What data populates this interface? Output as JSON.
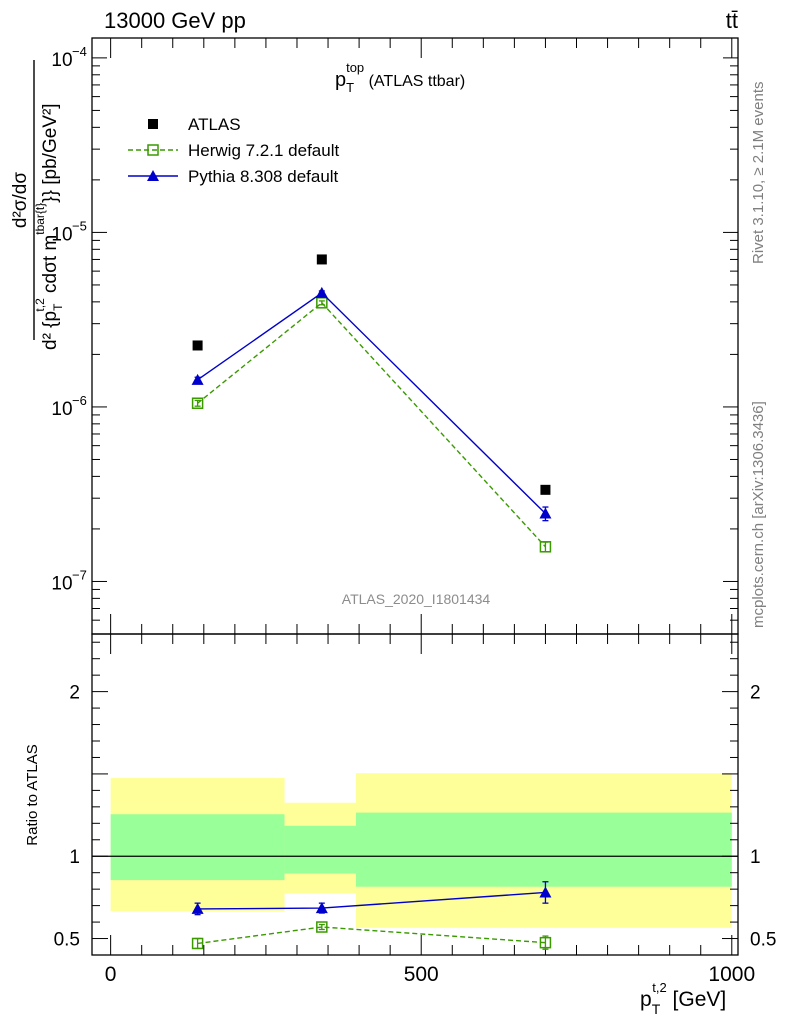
{
  "header": {
    "energy_label": "13000 GeV pp",
    "process_label": "tt̄",
    "side_rivet": "Rivet 3.1.10, ≥ 2.1M events",
    "side_mcplots": "mcplots.cern.ch [arXiv:1306.3436]"
  },
  "chart_data": [
    {
      "type": "line",
      "title_main": "p",
      "title_sub": "T",
      "title_sup": "top",
      "title_rest": " (ATLAS ttbar)",
      "analysis_label": "ATLAS_2020_I1801434",
      "ylabel": "d²σ/d{p_T^{t,2} cdot m^{tbar{t}}} [pb/GeV²]",
      "yscale": "log",
      "ylim": [
        5e-08,
        0.00013
      ],
      "xlim": [
        -30,
        1010
      ],
      "y_ticks": [
        {
          "value": 0.0001,
          "label": "10",
          "exp": "−4"
        },
        {
          "value": 1e-05,
          "label": "10",
          "exp": "−5"
        },
        {
          "value": 1e-06,
          "label": "10",
          "exp": "−6"
        },
        {
          "value": 1e-07,
          "label": "10",
          "exp": "−7"
        }
      ],
      "x": [
        140,
        340,
        700
      ],
      "series": [
        {
          "name": "ATLAS",
          "values": [
            2.25e-06,
            7e-06,
            3.35e-07
          ],
          "color": "#000000",
          "marker": "square-filled"
        },
        {
          "name": "Herwig 7.2.1 default",
          "values": [
            1.05e-06,
            3.95e-06,
            1.58e-07
          ],
          "errors": [
            4e-08,
            1e-07,
            1e-08
          ],
          "color": "#3a9a00",
          "marker": "square-open",
          "dashed": true
        },
        {
          "name": "Pythia 8.308 default",
          "values": [
            1.43e-06,
            4.5e-06,
            2.45e-07
          ],
          "errors": [
            5e-08,
            1.2e-07,
            2.2e-08
          ],
          "color": "#0000cc",
          "marker": "triangle"
        }
      ],
      "legend_position": "top-left",
      "ylabel_parts": {
        "num": "d²σ/dσ",
        "den": "d² {p",
        "den_sub": "T",
        "den_sup": "t,2",
        "den_rest": " cdσt m",
        "den_sup2": "tbar{t}",
        "den_end": "}} [pb/GeV²]"
      }
    },
    {
      "type": "line",
      "ylabel": "Ratio to ATLAS",
      "xlabel_main": "p",
      "xlabel_sub": "T",
      "xlabel_sup": "t,2",
      "xlabel_rest": " [GeV]",
      "ylim": [
        0.4,
        2.35
      ],
      "xlim": [
        -30,
        1010
      ],
      "y_ticks": [
        {
          "value": 0.5,
          "label": "0.5"
        },
        {
          "value": 1,
          "label": "1"
        },
        {
          "value": 2,
          "label": "2"
        }
      ],
      "x_ticks": [
        {
          "value": 0,
          "label": "0"
        },
        {
          "value": 500,
          "label": "500"
        },
        {
          "value": 1000,
          "label": "1000"
        }
      ],
      "bins": [
        {
          "x0": 0,
          "x1": 280,
          "yellow": [
            0.665,
            1.475
          ],
          "green": [
            0.855,
            1.255
          ]
        },
        {
          "x0": 280,
          "x1": 395,
          "yellow": [
            0.775,
            1.325
          ],
          "green": [
            0.895,
            1.185
          ]
        },
        {
          "x0": 395,
          "x1": 1000,
          "yellow": [
            0.565,
            1.505
          ],
          "green": [
            0.815,
            1.265
          ]
        }
      ],
      "x": [
        140,
        340,
        700
      ],
      "series": [
        {
          "name": "Herwig 7.2.1 default",
          "values": [
            0.47,
            0.57,
            0.475
          ],
          "errors": [
            0.03,
            0.015,
            0.04
          ],
          "color": "#3a9a00",
          "marker": "square-open",
          "dashed": true
        },
        {
          "name": "Pythia 8.308 default",
          "values": [
            0.68,
            0.685,
            0.78
          ],
          "errors": [
            0.035,
            0.03,
            0.065
          ],
          "color": "#0000cc",
          "marker": "triangle"
        }
      ],
      "reference": 1
    }
  ]
}
